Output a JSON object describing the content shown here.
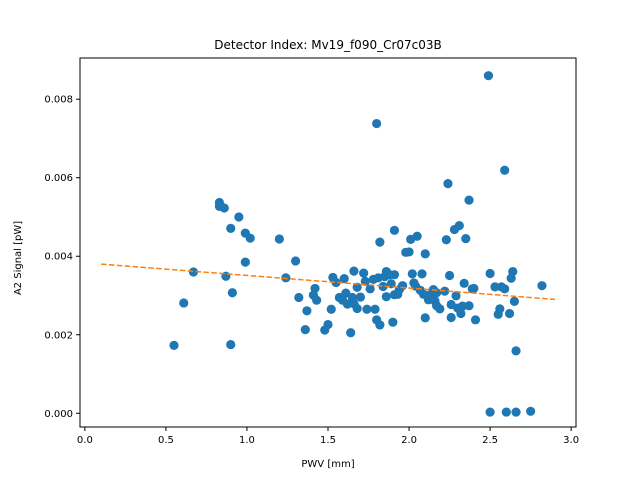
{
  "chart_data": {
    "type": "scatter",
    "title": "Detector Index: Mv19_f090_Cr07c03B",
    "xlabel": "PWV [mm]",
    "ylabel": "A2 Signal [pW]",
    "xlim": [
      -0.03,
      3.03
    ],
    "ylim": [
      -0.00035,
      0.00905
    ],
    "xticks": [
      0.0,
      0.5,
      1.0,
      1.5,
      2.0,
      2.5,
      3.0
    ],
    "xtick_labels": [
      "0.0",
      "0.5",
      "1.0",
      "1.5",
      "2.0",
      "2.5",
      "3.0"
    ],
    "yticks": [
      0.0,
      0.002,
      0.004,
      0.006,
      0.008
    ],
    "ytick_labels": [
      "0.000",
      "0.002",
      "0.004",
      "0.006",
      "0.008"
    ],
    "series": [
      {
        "name": "measurements",
        "kind": "scatter",
        "color": "#1f77b4",
        "points": [
          [
            0.55,
            0.00173
          ],
          [
            0.61,
            0.00281
          ],
          [
            0.67,
            0.0036
          ],
          [
            0.83,
            0.00537
          ],
          [
            0.83,
            0.00527
          ],
          [
            0.86,
            0.00523
          ],
          [
            0.87,
            0.00349
          ],
          [
            0.9,
            0.00471
          ],
          [
            0.9,
            0.00175
          ],
          [
            0.91,
            0.00307
          ],
          [
            0.95,
            0.005
          ],
          [
            0.99,
            0.00385
          ],
          [
            0.99,
            0.00459
          ],
          [
            1.02,
            0.00446
          ],
          [
            1.2,
            0.00444
          ],
          [
            1.24,
            0.00345
          ],
          [
            1.3,
            0.00388
          ],
          [
            1.32,
            0.00295
          ],
          [
            1.36,
            0.00213
          ],
          [
            1.37,
            0.00261
          ],
          [
            1.41,
            0.00301
          ],
          [
            1.42,
            0.00318
          ],
          [
            1.43,
            0.00288
          ],
          [
            1.48,
            0.00212
          ],
          [
            1.5,
            0.00226
          ],
          [
            1.52,
            0.00265
          ],
          [
            1.53,
            0.00346
          ],
          [
            1.55,
            0.00333
          ],
          [
            1.57,
            0.00295
          ],
          [
            1.59,
            0.00288
          ],
          [
            1.6,
            0.00343
          ],
          [
            1.61,
            0.00306
          ],
          [
            1.62,
            0.00278
          ],
          [
            1.64,
            0.00205
          ],
          [
            1.65,
            0.00295
          ],
          [
            1.66,
            0.00362
          ],
          [
            1.66,
            0.00279
          ],
          [
            1.68,
            0.00321
          ],
          [
            1.68,
            0.00267
          ],
          [
            1.7,
            0.00296
          ],
          [
            1.72,
            0.00357
          ],
          [
            1.73,
            0.00336
          ],
          [
            1.74,
            0.00265
          ],
          [
            1.76,
            0.00317
          ],
          [
            1.78,
            0.00341
          ],
          [
            1.79,
            0.00265
          ],
          [
            1.8,
            0.00738
          ],
          [
            1.8,
            0.00238
          ],
          [
            1.81,
            0.00345
          ],
          [
            1.82,
            0.00225
          ],
          [
            1.82,
            0.00436
          ],
          [
            1.84,
            0.00323
          ],
          [
            1.85,
            0.00348
          ],
          [
            1.86,
            0.00297
          ],
          [
            1.86,
            0.00361
          ],
          [
            1.88,
            0.00353
          ],
          [
            1.89,
            0.0033
          ],
          [
            1.9,
            0.00232
          ],
          [
            1.91,
            0.00302
          ],
          [
            1.91,
            0.00466
          ],
          [
            1.91,
            0.00353
          ],
          [
            1.93,
            0.00303
          ],
          [
            1.94,
            0.00315
          ],
          [
            1.96,
            0.00325
          ],
          [
            1.98,
            0.0041
          ],
          [
            2.0,
            0.00411
          ],
          [
            2.01,
            0.00443
          ],
          [
            2.02,
            0.00355
          ],
          [
            2.03,
            0.00332
          ],
          [
            2.04,
            0.00324
          ],
          [
            2.05,
            0.00451
          ],
          [
            2.07,
            0.00313
          ],
          [
            2.08,
            0.00355
          ],
          [
            2.09,
            0.00303
          ],
          [
            2.1,
            0.00243
          ],
          [
            2.1,
            0.00406
          ],
          [
            2.12,
            0.00289
          ],
          [
            2.13,
            0.00302
          ],
          [
            2.15,
            0.00315
          ],
          [
            2.16,
            0.00286
          ],
          [
            2.17,
            0.00307
          ],
          [
            2.17,
            0.00274
          ],
          [
            2.19,
            0.00266
          ],
          [
            2.22,
            0.00311
          ],
          [
            2.23,
            0.00442
          ],
          [
            2.24,
            0.00585
          ],
          [
            2.25,
            0.00351
          ],
          [
            2.26,
            0.00244
          ],
          [
            2.26,
            0.00277
          ],
          [
            2.28,
            0.00468
          ],
          [
            2.29,
            0.00299
          ],
          [
            2.3,
            0.00268
          ],
          [
            2.31,
            0.00478
          ],
          [
            2.32,
            0.00254
          ],
          [
            2.33,
            0.00273
          ],
          [
            2.34,
            0.00331
          ],
          [
            2.35,
            0.00445
          ],
          [
            2.37,
            0.00543
          ],
          [
            2.37,
            0.00274
          ],
          [
            2.39,
            0.00317
          ],
          [
            2.4,
            0.00318
          ],
          [
            2.41,
            0.00238
          ],
          [
            2.49,
            0.0086
          ],
          [
            2.5,
            0.00356
          ],
          [
            2.5,
            3e-05
          ],
          [
            2.53,
            0.00322
          ],
          [
            2.55,
            0.00252
          ],
          [
            2.56,
            0.00266
          ],
          [
            2.57,
            0.00322
          ],
          [
            2.59,
            0.00619
          ],
          [
            2.59,
            0.00317
          ],
          [
            2.6,
            3e-05
          ],
          [
            2.62,
            0.00254
          ],
          [
            2.63,
            0.00344
          ],
          [
            2.64,
            0.00361
          ],
          [
            2.65,
            0.00285
          ],
          [
            2.66,
            3e-05
          ],
          [
            2.66,
            0.00159
          ],
          [
            2.75,
            5e-05
          ],
          [
            2.82,
            0.00325
          ]
        ]
      },
      {
        "name": "fit",
        "kind": "dashed-line",
        "color": "#ff7f0e",
        "points": [
          [
            0.1,
            0.0038
          ],
          [
            2.9,
            0.0029
          ]
        ]
      }
    ]
  }
}
